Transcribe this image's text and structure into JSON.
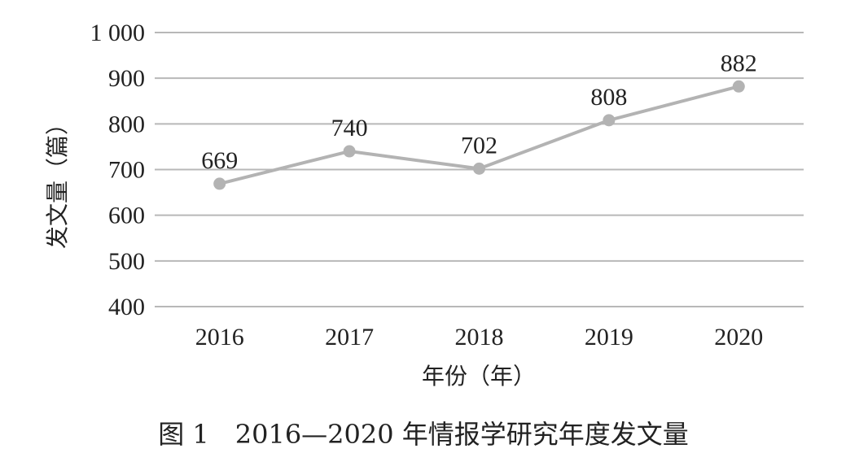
{
  "chart_data": {
    "type": "line",
    "categories": [
      "2016",
      "2017",
      "2018",
      "2019",
      "2020"
    ],
    "series": [
      {
        "values": [
          669,
          740,
          702,
          808,
          882
        ],
        "color": "#b3b3b3"
      }
    ],
    "data_labels": [
      "669",
      "740",
      "702",
      "808",
      "882"
    ],
    "ylim": [
      400,
      1000
    ],
    "yticks": [
      400,
      500,
      600,
      700,
      800,
      900,
      1000
    ],
    "ytick_labels": [
      "400",
      "500",
      "600",
      "700",
      "800",
      "900",
      "1 000"
    ],
    "xlabel": "年份（年）",
    "ylabel": "发文量（篇）",
    "grid": "horizontal",
    "grid_color": "#b8b8b8"
  },
  "caption": "图 1　2016—2020 年情报学研究年度发文量"
}
